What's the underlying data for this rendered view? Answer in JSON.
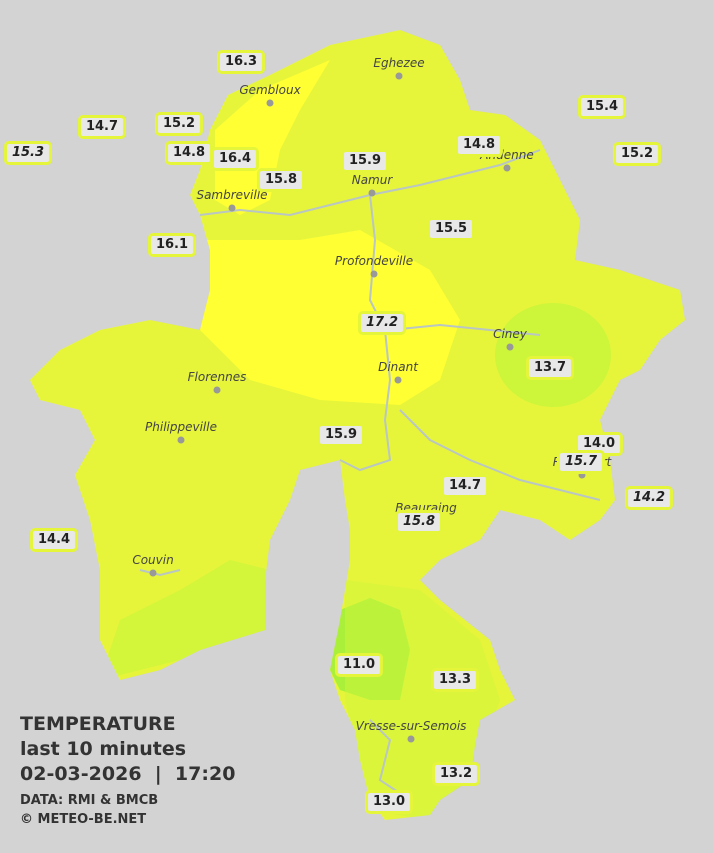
{
  "legend": {
    "title": "TEMPERATURE",
    "subtitle": "last 10 minutes",
    "datetime": "02-03-2026  |  17:20",
    "source": "DATA: RMI & BMCB",
    "copyright": "© METEO-BE.NET"
  },
  "towns": [
    "Eghezee",
    "Gembloux",
    "Andenne",
    "Namur",
    "Sambreville",
    "Profondeville",
    "Ciney",
    "Dinant",
    "Florennes",
    "Philippeville",
    "Rochefort",
    "Beauraing",
    "Couvin",
    "Vresse-sur-Semois"
  ],
  "stations": [
    "16.3",
    "14.7",
    "15.2",
    "15.3",
    "14.8",
    "16.4",
    "15.8",
    "15.9",
    "14.8",
    "15.4",
    "15.2",
    "16.1",
    "15.5",
    "17.2",
    "13.7",
    "15.9",
    "14.0",
    "15.7",
    "14.7",
    "14.2",
    "15.8",
    "14.4",
    "11.0",
    "13.3",
    "13.2",
    "13.0"
  ]
}
